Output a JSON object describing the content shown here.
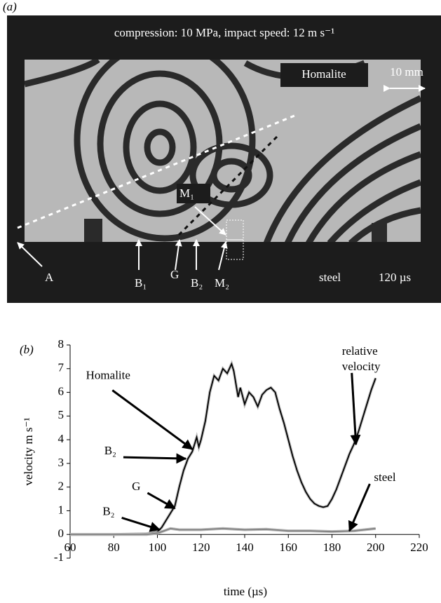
{
  "panel_a": {
    "label": "(a)",
    "caption": "compression: 10 MPa, impact speed: 12 m s⁻¹",
    "material": "Homalite",
    "scale": "10 mm",
    "base": "steel",
    "time": "120 µs",
    "markers": [
      "A",
      "B₁",
      "G",
      "B₂",
      "M₂",
      "M₁"
    ]
  },
  "chart_data": {
    "type": "line",
    "panel_label": "(b)",
    "xlabel": "time (µs)",
    "ylabel": "velocity m s⁻¹",
    "xlim": [
      60,
      220
    ],
    "xticks": [
      60,
      80,
      100,
      120,
      140,
      160,
      180,
      200,
      220
    ],
    "ylim": [
      -1,
      8
    ],
    "yticks": [
      -1,
      0,
      1,
      2,
      3,
      4,
      5,
      6,
      7,
      8
    ],
    "series": [
      {
        "color": "#000000",
        "x": [
          60,
          70,
          80,
          90,
          95,
          100,
          102,
          104,
          106,
          108,
          110,
          112,
          114,
          116,
          118,
          119,
          120,
          122,
          124,
          126,
          128,
          130,
          132,
          134,
          135,
          137,
          138,
          140,
          142,
          144,
          146,
          148,
          150,
          152,
          154,
          156,
          158,
          160,
          162,
          164,
          166,
          168,
          170,
          172,
          174,
          176,
          178,
          180,
          182,
          184,
          186,
          188,
          190,
          192,
          194,
          196,
          198,
          200
        ],
        "values": [
          0,
          0,
          0,
          0.02,
          0.03,
          0.1,
          0.3,
          0.6,
          0.9,
          1.2,
          2,
          2.7,
          3.2,
          3.5,
          4.1,
          3.7,
          4.0,
          4.8,
          6.0,
          6.7,
          6.5,
          7.0,
          6.8,
          7.2,
          6.9,
          5.8,
          6.2,
          5.5,
          6.0,
          5.8,
          5.4,
          5.9,
          6.1,
          6.2,
          6.0,
          5.3,
          4.7,
          4.0,
          3.3,
          2.7,
          2.2,
          1.8,
          1.5,
          1.3,
          1.2,
          1.15,
          1.2,
          1.5,
          1.9,
          2.4,
          2.9,
          3.4,
          3.8,
          4.3,
          4.9,
          5.5,
          6.1,
          6.6
        ]
      },
      {
        "color": "#808080",
        "x": [
          60,
          80,
          95,
          100,
          103,
          106,
          110,
          120,
          130,
          140,
          150,
          160,
          170,
          180,
          190,
          200
        ],
        "values": [
          0,
          0,
          0,
          0.05,
          0.15,
          0.25,
          0.2,
          0.2,
          0.25,
          0.2,
          0.22,
          0.15,
          0.15,
          0.12,
          0.15,
          0.25
        ]
      }
    ],
    "annotations": [
      {
        "lines": [
          "Homalite"
        ],
        "x": 116,
        "y": 3.6
      },
      {
        "lines": [
          "B₂"
        ],
        "x": 113,
        "y": 3.2
      },
      {
        "lines": [
          "G"
        ],
        "x": 108,
        "y": 1.1
      },
      {
        "lines": [
          "B₂"
        ],
        "x": 101,
        "y": 0.2
      },
      {
        "lines": [
          "steel"
        ],
        "x": 188,
        "y": 0.15
      },
      {
        "lines": [
          "relative",
          "velocity"
        ],
        "x": 191,
        "y": 3.8
      }
    ]
  }
}
